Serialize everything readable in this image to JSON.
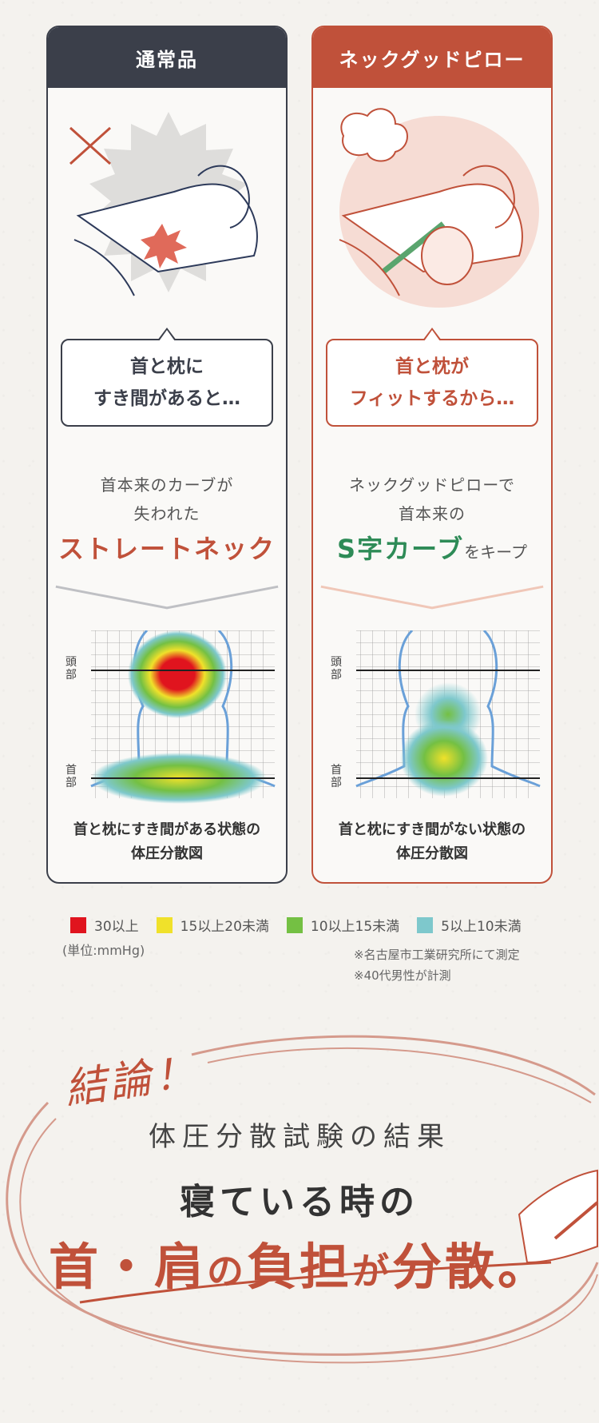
{
  "left_card": {
    "header": "通常品",
    "bubble_line1": "首と枕に",
    "bubble_line2": "すき間があると…",
    "desc_line1": "首本来のカーブが",
    "desc_line2": "失われた",
    "headline": "ストレートネック",
    "head_label": "頭部",
    "neck_label": "首部",
    "caption_line1": "首と枕にすき間がある状態の",
    "caption_line2": "体圧分散図"
  },
  "right_card": {
    "header": "ネックグッドピロー",
    "bubble_line1": "首と枕が",
    "bubble_line2": "フィットするから…",
    "desc_line1": "ネックグッドピローで",
    "desc_line2": "首本来の",
    "headline_main": "S字カーブ",
    "headline_suffix": "をキープ",
    "head_label": "頭部",
    "neck_label": "首部",
    "caption_line1": "首と枕にすき間がない状態の",
    "caption_line2": "体圧分散図"
  },
  "legend": [
    {
      "label": "30以上",
      "color": "#e0141e"
    },
    {
      "label": "15以上20未満",
      "color": "#f0e12a"
    },
    {
      "label": "10以上15未満",
      "color": "#74c043"
    },
    {
      "label": "5以上10未満",
      "color": "#7ec8cc"
    }
  ],
  "unit": "(単位:mmHg)",
  "notes": [
    "※名古屋市工業研究所にて測定",
    "※40代男性が計測"
  ],
  "conclusion": {
    "label": "結論！",
    "subtitle": "体圧分散試験の結果",
    "line1": "寝ている時の",
    "line2_a": "首・肩",
    "line2_b": "の",
    "line2_c": "負担",
    "line2_d": "が",
    "line2_e": "分散。"
  },
  "colors": {
    "dark": "#3b3f4a",
    "accent": "#c0513a",
    "green": "#2e8b57"
  }
}
